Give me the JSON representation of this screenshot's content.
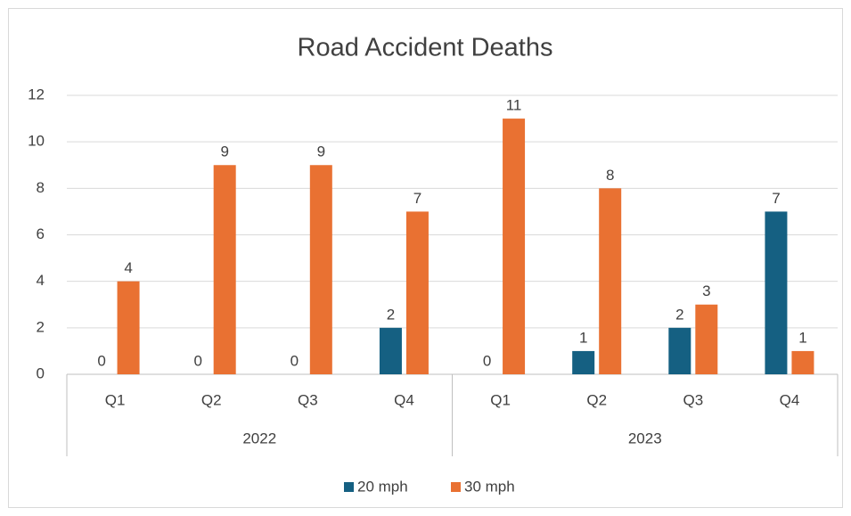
{
  "chart_data": {
    "type": "bar",
    "title": "Road Accident Deaths",
    "groups": [
      {
        "name": "2022",
        "categories": [
          "Q1",
          "Q2",
          "Q3",
          "Q4"
        ]
      },
      {
        "name": "2023",
        "categories": [
          "Q1",
          "Q2",
          "Q3",
          "Q4"
        ]
      }
    ],
    "series": [
      {
        "name": "20 mph",
        "color": "#156082",
        "values": [
          0,
          0,
          0,
          2,
          0,
          1,
          2,
          7
        ]
      },
      {
        "name": "30 mph",
        "color": "#e97132",
        "values": [
          4,
          9,
          9,
          7,
          11,
          8,
          3,
          1
        ]
      }
    ],
    "ylim": [
      0,
      12
    ],
    "yticks": [
      0,
      2,
      4,
      6,
      8,
      10,
      12
    ],
    "grid": true,
    "legend": "bottom"
  }
}
